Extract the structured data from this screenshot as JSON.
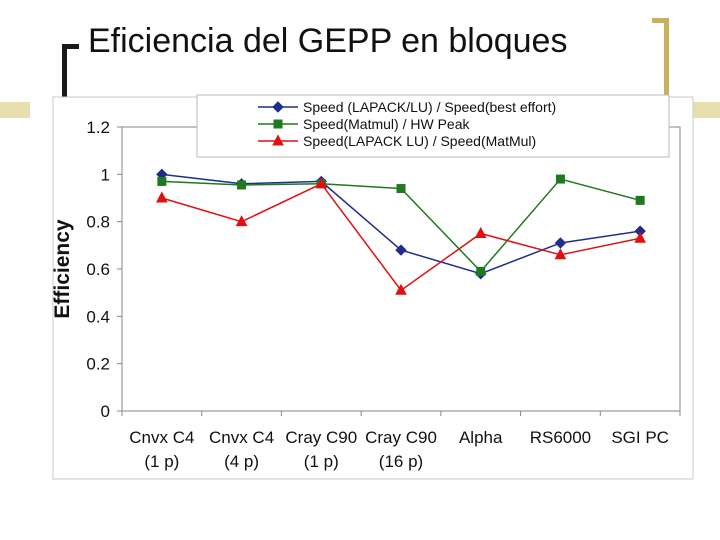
{
  "slide": {
    "title": "Eficiencia del GEPP en bloques",
    "accent_color": "#c8b15a",
    "accent_light": "#e9dfae"
  },
  "chart_data": {
    "type": "line",
    "title": "",
    "xlabel": "",
    "ylabel": "Efficiency",
    "ylim": [
      0,
      1.2
    ],
    "yticks": [
      0,
      0.2,
      0.4,
      0.6,
      0.8,
      1,
      1.2
    ],
    "ytick_labels": [
      "0",
      "0.2",
      "0.4",
      "0.6",
      "0.8",
      "1",
      "1.2"
    ],
    "grid": false,
    "legend_position": "top",
    "categories": [
      [
        "Cnvx C4",
        "(1 p)"
      ],
      [
        "Cnvx C4",
        "(4 p)"
      ],
      [
        "Cray C90",
        "(1 p)"
      ],
      [
        "Cray C90",
        "(16 p)"
      ],
      [
        "Alpha",
        ""
      ],
      [
        "RS6000",
        ""
      ],
      [
        "SGI PC",
        ""
      ]
    ],
    "series": [
      {
        "name": "Speed (LAPACK/LU) / Speed(best effort)",
        "color": "#1f2d8f",
        "marker": "diamond",
        "values": [
          1.0,
          0.96,
          0.97,
          0.68,
          0.58,
          0.71,
          0.76
        ]
      },
      {
        "name": "Speed(Matmul) / HW Peak",
        "color": "#1e7a1e",
        "marker": "square",
        "values": [
          0.97,
          0.955,
          0.96,
          0.94,
          0.59,
          0.98,
          0.89
        ]
      },
      {
        "name": "Speed(LAPACK LU) / Speed(MatMul)",
        "color": "#e01010",
        "marker": "triangle",
        "values": [
          0.9,
          0.8,
          0.96,
          0.51,
          0.75,
          0.66,
          0.73
        ]
      }
    ]
  }
}
